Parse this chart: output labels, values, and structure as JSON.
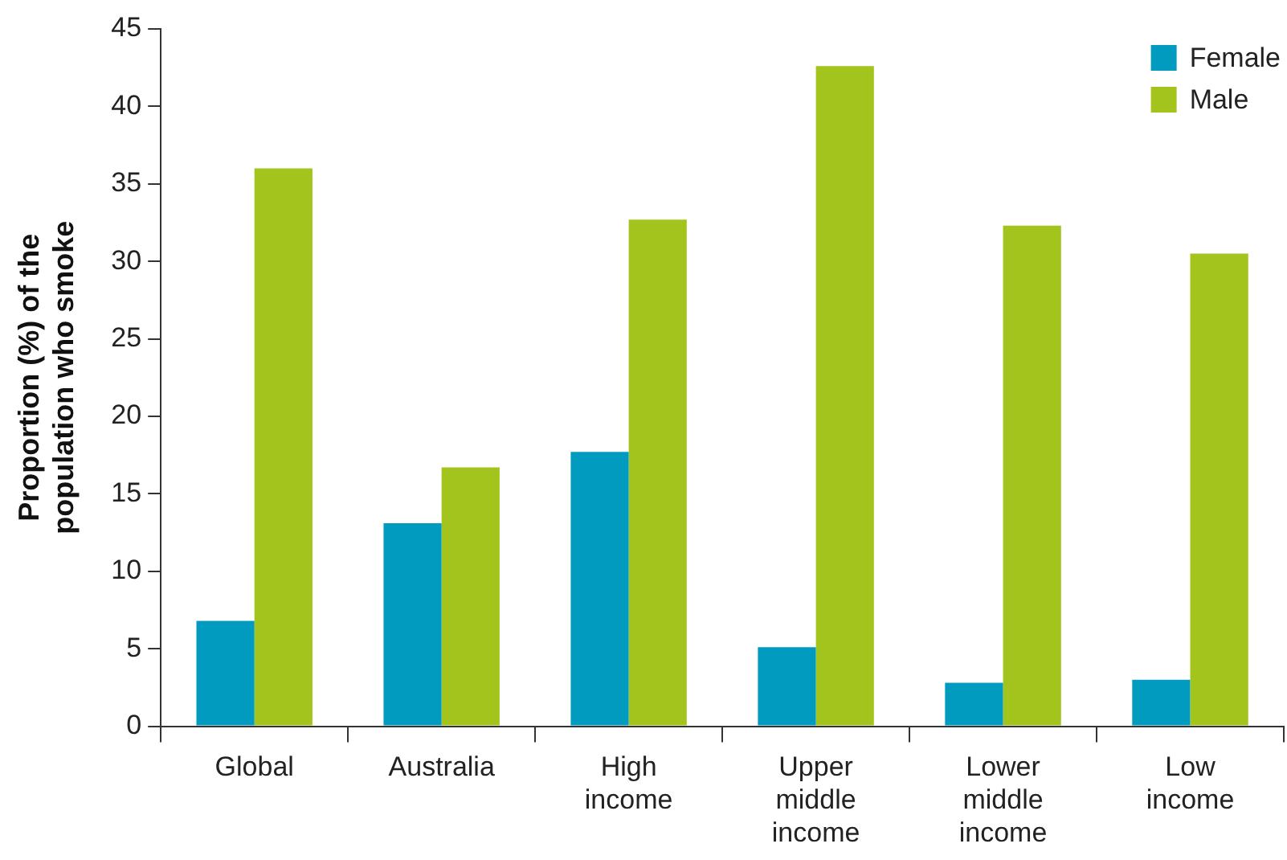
{
  "chart_data": {
    "type": "bar",
    "ylabel": "Proportion (%) of the population who smoke",
    "categories": [
      "Global",
      "Australia",
      "High income",
      "Upper middle income",
      "Lower middle income",
      "Low income"
    ],
    "series": [
      {
        "name": "Female",
        "color": "#009bbf",
        "values": [
          6.8,
          13.1,
          17.7,
          5.1,
          2.8,
          3.0
        ]
      },
      {
        "name": "Male",
        "color": "#a3c41d",
        "values": [
          36.0,
          16.7,
          32.7,
          42.6,
          32.3,
          30.5
        ]
      }
    ],
    "ylim": [
      0,
      45
    ],
    "yticks": [
      0,
      5,
      10,
      15,
      20,
      25,
      30,
      35,
      40,
      45
    ],
    "grid": false,
    "legend": "top right"
  }
}
